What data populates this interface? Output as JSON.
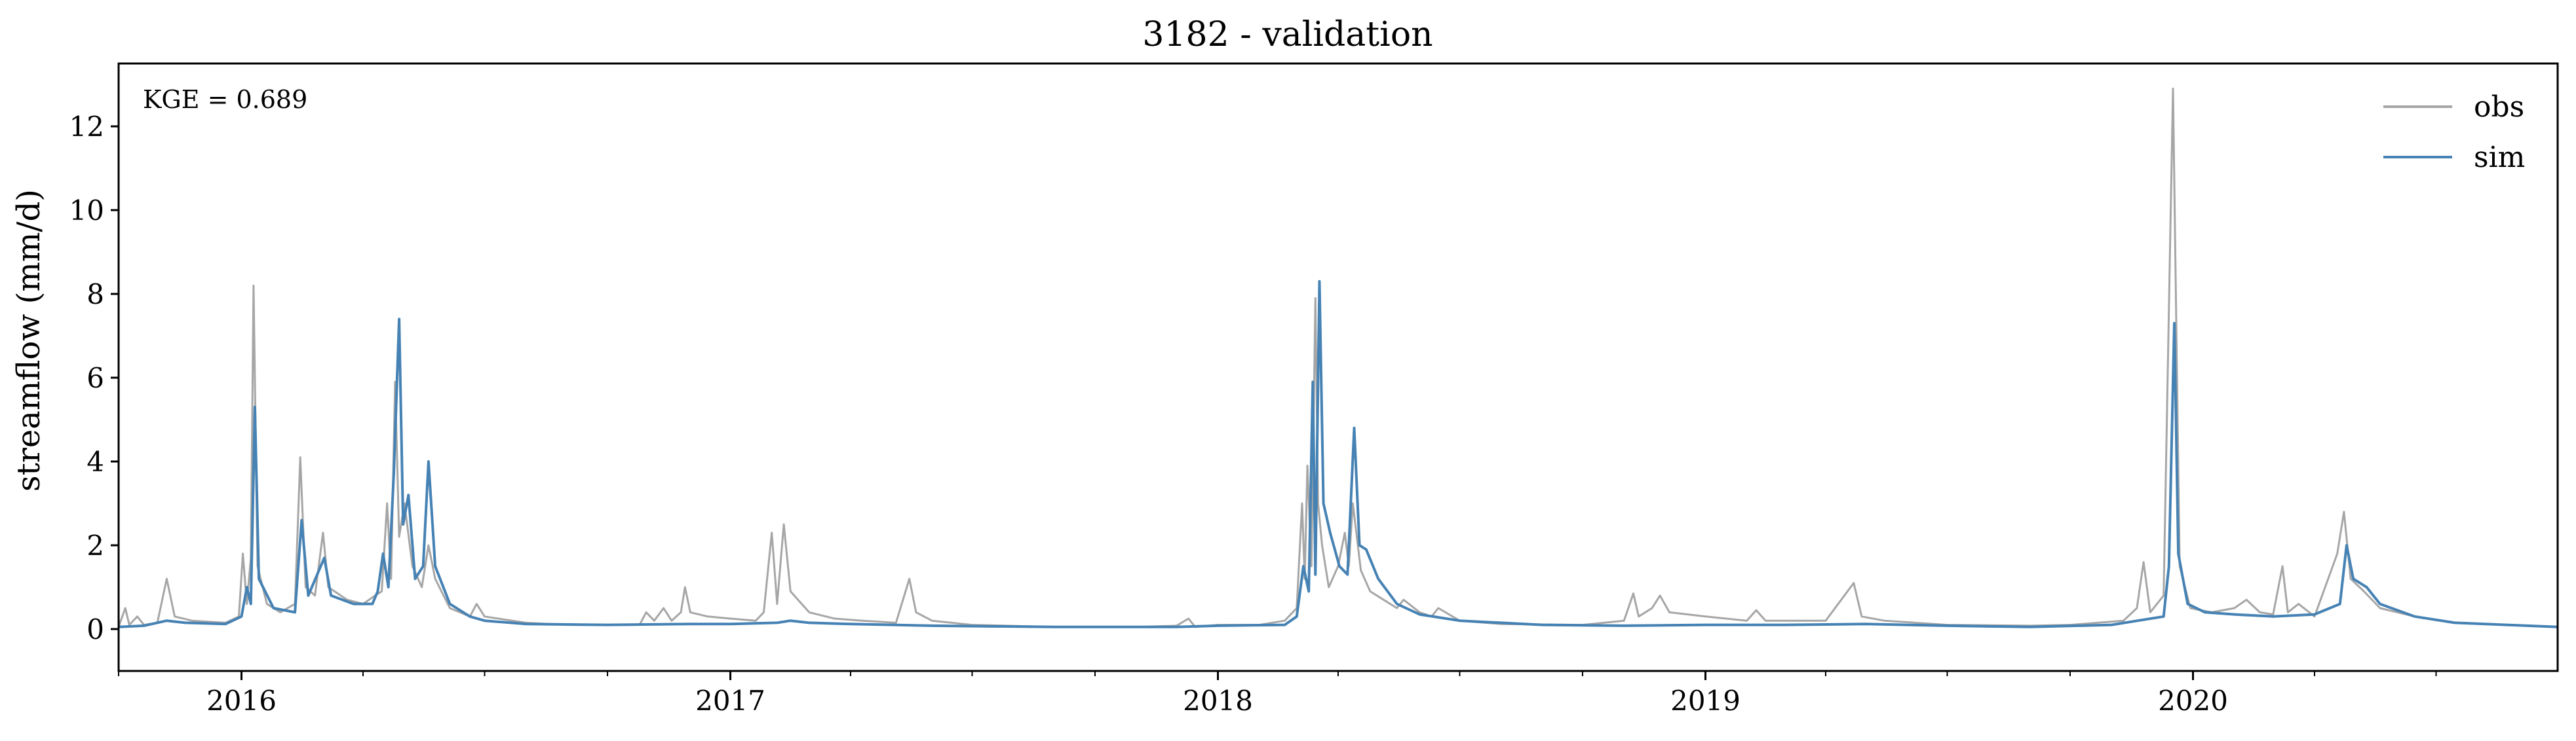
{
  "chart_data": {
    "type": "line",
    "title": "3182 - validation",
    "xlabel": "",
    "ylabel": "streamflow (mm/d)",
    "annotation": "KGE = 0.689",
    "legend_position": "top-right",
    "grid": false,
    "xlim": [
      "2015-10-01",
      "2020-09-30"
    ],
    "ylim": [
      -1,
      13.5
    ],
    "x_ticks": [
      "2016",
      "2017",
      "2018",
      "2019",
      "2020"
    ],
    "y_ticks": [
      "0",
      "2",
      "4",
      "6",
      "8",
      "10",
      "12"
    ],
    "x_minor_ticks": "quarterly",
    "series": [
      {
        "name": "obs",
        "color": "#a6a6a6",
        "points": [
          [
            "2015-10-01",
            0.05
          ],
          [
            "2015-10-06",
            0.5
          ],
          [
            "2015-10-09",
            0.1
          ],
          [
            "2015-10-15",
            0.3
          ],
          [
            "2015-10-20",
            0.1
          ],
          [
            "2015-10-30",
            0.15
          ],
          [
            "2015-11-06",
            1.2
          ],
          [
            "2015-11-12",
            0.3
          ],
          [
            "2015-11-25",
            0.2
          ],
          [
            "2015-12-20",
            0.15
          ],
          [
            "2015-12-30",
            0.3
          ],
          [
            "2016-01-02",
            1.8
          ],
          [
            "2016-01-05",
            0.6
          ],
          [
            "2016-01-08",
            1.7
          ],
          [
            "2016-01-10",
            8.2
          ],
          [
            "2016-01-13",
            1.5
          ],
          [
            "2016-01-20",
            0.6
          ],
          [
            "2016-01-30",
            0.4
          ],
          [
            "2016-02-10",
            0.6
          ],
          [
            "2016-02-14",
            4.1
          ],
          [
            "2016-02-18",
            1.0
          ],
          [
            "2016-02-25",
            0.8
          ],
          [
            "2016-03-02",
            2.3
          ],
          [
            "2016-03-06",
            1.0
          ],
          [
            "2016-03-20",
            0.7
          ],
          [
            "2016-04-01",
            0.6
          ],
          [
            "2016-04-10",
            0.8
          ],
          [
            "2016-04-15",
            0.9
          ],
          [
            "2016-04-19",
            3.0
          ],
          [
            "2016-04-22",
            1.2
          ],
          [
            "2016-04-25",
            5.9
          ],
          [
            "2016-04-28",
            2.2
          ],
          [
            "2016-05-02",
            3.0
          ],
          [
            "2016-05-08",
            1.5
          ],
          [
            "2016-05-15",
            1.0
          ],
          [
            "2016-05-20",
            2.0
          ],
          [
            "2016-05-25",
            1.2
          ],
          [
            "2016-06-05",
            0.5
          ],
          [
            "2016-06-20",
            0.3
          ],
          [
            "2016-06-25",
            0.6
          ],
          [
            "2016-07-01",
            0.3
          ],
          [
            "2016-08-01",
            0.15
          ],
          [
            "2016-09-01",
            0.1
          ],
          [
            "2016-10-01",
            0.1
          ],
          [
            "2016-10-25",
            0.1
          ],
          [
            "2016-10-30",
            0.4
          ],
          [
            "2016-11-05",
            0.2
          ],
          [
            "2016-11-12",
            0.5
          ],
          [
            "2016-11-18",
            0.2
          ],
          [
            "2016-11-25",
            0.4
          ],
          [
            "2016-11-28",
            1.0
          ],
          [
            "2016-12-02",
            0.4
          ],
          [
            "2016-12-15",
            0.3
          ],
          [
            "2017-01-01",
            0.25
          ],
          [
            "2017-01-20",
            0.2
          ],
          [
            "2017-01-26",
            0.4
          ],
          [
            "2017-02-01",
            2.3
          ],
          [
            "2017-02-05",
            0.6
          ],
          [
            "2017-02-10",
            2.5
          ],
          [
            "2017-02-15",
            0.9
          ],
          [
            "2017-03-01",
            0.4
          ],
          [
            "2017-03-20",
            0.25
          ],
          [
            "2017-04-10",
            0.2
          ],
          [
            "2017-05-05",
            0.15
          ],
          [
            "2017-05-15",
            1.2
          ],
          [
            "2017-05-20",
            0.4
          ],
          [
            "2017-06-01",
            0.2
          ],
          [
            "2017-07-01",
            0.1
          ],
          [
            "2017-09-01",
            0.05
          ],
          [
            "2017-11-01",
            0.05
          ],
          [
            "2017-12-01",
            0.08
          ],
          [
            "2017-12-10",
            0.25
          ],
          [
            "2017-12-15",
            0.05
          ],
          [
            "2018-01-01",
            0.1
          ],
          [
            "2018-01-20",
            0.1
          ],
          [
            "2018-02-01",
            0.1
          ],
          [
            "2018-02-20",
            0.2
          ],
          [
            "2018-03-01",
            0.5
          ],
          [
            "2018-03-05",
            3.0
          ],
          [
            "2018-03-07",
            1.2
          ],
          [
            "2018-03-09",
            3.9
          ],
          [
            "2018-03-12",
            1.5
          ],
          [
            "2018-03-15",
            7.9
          ],
          [
            "2018-03-17",
            3.0
          ],
          [
            "2018-03-20",
            2.0
          ],
          [
            "2018-03-25",
            1.0
          ],
          [
            "2018-04-01",
            1.5
          ],
          [
            "2018-04-06",
            2.3
          ],
          [
            "2018-04-09",
            1.5
          ],
          [
            "2018-04-12",
            3.0
          ],
          [
            "2018-04-18",
            1.4
          ],
          [
            "2018-04-25",
            0.9
          ],
          [
            "2018-05-05",
            0.7
          ],
          [
            "2018-05-15",
            0.5
          ],
          [
            "2018-05-20",
            0.7
          ],
          [
            "2018-06-01",
            0.4
          ],
          [
            "2018-06-10",
            0.3
          ],
          [
            "2018-06-15",
            0.5
          ],
          [
            "2018-07-01",
            0.2
          ],
          [
            "2018-08-01",
            0.12
          ],
          [
            "2018-10-01",
            0.1
          ],
          [
            "2018-11-01",
            0.2
          ],
          [
            "2018-11-08",
            0.85
          ],
          [
            "2018-11-12",
            0.3
          ],
          [
            "2018-11-22",
            0.5
          ],
          [
            "2018-11-28",
            0.8
          ],
          [
            "2018-12-05",
            0.4
          ],
          [
            "2019-01-01",
            0.3
          ],
          [
            "2019-02-01",
            0.2
          ],
          [
            "2019-02-08",
            0.45
          ],
          [
            "2019-02-15",
            0.2
          ],
          [
            "2019-04-01",
            0.2
          ],
          [
            "2019-04-22",
            1.1
          ],
          [
            "2019-04-28",
            0.3
          ],
          [
            "2019-05-15",
            0.2
          ],
          [
            "2019-07-01",
            0.1
          ],
          [
            "2019-09-01",
            0.08
          ],
          [
            "2019-10-01",
            0.1
          ],
          [
            "2019-11-10",
            0.2
          ],
          [
            "2019-11-20",
            0.5
          ],
          [
            "2019-11-25",
            1.6
          ],
          [
            "2019-11-30",
            0.4
          ],
          [
            "2019-12-10",
            0.8
          ],
          [
            "2019-12-17",
            12.9
          ],
          [
            "2019-12-22",
            1.5
          ],
          [
            "2019-12-30",
            0.5
          ],
          [
            "2020-01-15",
            0.4
          ],
          [
            "2020-02-01",
            0.5
          ],
          [
            "2020-02-10",
            0.7
          ],
          [
            "2020-02-20",
            0.4
          ],
          [
            "2020-03-01",
            0.35
          ],
          [
            "2020-03-08",
            1.5
          ],
          [
            "2020-03-12",
            0.4
          ],
          [
            "2020-03-20",
            0.6
          ],
          [
            "2020-04-01",
            0.3
          ],
          [
            "2020-04-18",
            1.8
          ],
          [
            "2020-04-23",
            2.8
          ],
          [
            "2020-04-28",
            1.2
          ],
          [
            "2020-05-08",
            0.9
          ],
          [
            "2020-05-20",
            0.5
          ],
          [
            "2020-06-15",
            0.3
          ],
          [
            "2020-07-15",
            0.15
          ],
          [
            "2020-09-30",
            0.05
          ]
        ]
      },
      {
        "name": "sim",
        "color": "#4682b4",
        "points": [
          [
            "2015-10-01",
            0.05
          ],
          [
            "2015-10-20",
            0.08
          ],
          [
            "2015-11-06",
            0.2
          ],
          [
            "2015-11-20",
            0.15
          ],
          [
            "2015-12-20",
            0.12
          ],
          [
            "2016-01-01",
            0.3
          ],
          [
            "2016-01-05",
            1.0
          ],
          [
            "2016-01-08",
            0.6
          ],
          [
            "2016-01-11",
            5.3
          ],
          [
            "2016-01-14",
            1.2
          ],
          [
            "2016-01-25",
            0.5
          ],
          [
            "2016-02-10",
            0.4
          ],
          [
            "2016-02-15",
            2.6
          ],
          [
            "2016-02-20",
            0.8
          ],
          [
            "2016-03-03",
            1.7
          ],
          [
            "2016-03-08",
            0.8
          ],
          [
            "2016-03-25",
            0.6
          ],
          [
            "2016-04-08",
            0.6
          ],
          [
            "2016-04-12",
            0.9
          ],
          [
            "2016-04-16",
            1.8
          ],
          [
            "2016-04-20",
            1.0
          ],
          [
            "2016-04-24",
            3.7
          ],
          [
            "2016-04-28",
            7.4
          ],
          [
            "2016-05-01",
            2.5
          ],
          [
            "2016-05-05",
            3.2
          ],
          [
            "2016-05-10",
            1.2
          ],
          [
            "2016-05-16",
            1.5
          ],
          [
            "2016-05-20",
            4.0
          ],
          [
            "2016-05-25",
            1.5
          ],
          [
            "2016-06-05",
            0.6
          ],
          [
            "2016-06-20",
            0.3
          ],
          [
            "2016-07-01",
            0.2
          ],
          [
            "2016-08-01",
            0.12
          ],
          [
            "2016-10-01",
            0.1
          ],
          [
            "2016-12-01",
            0.12
          ],
          [
            "2017-01-01",
            0.12
          ],
          [
            "2017-02-05",
            0.15
          ],
          [
            "2017-02-15",
            0.2
          ],
          [
            "2017-03-01",
            0.15
          ],
          [
            "2017-04-01",
            0.12
          ],
          [
            "2017-06-01",
            0.08
          ],
          [
            "2017-09-01",
            0.05
          ],
          [
            "2017-12-01",
            0.05
          ],
          [
            "2018-01-01",
            0.08
          ],
          [
            "2018-02-20",
            0.1
          ],
          [
            "2018-03-01",
            0.3
          ],
          [
            "2018-03-06",
            1.5
          ],
          [
            "2018-03-10",
            0.9
          ],
          [
            "2018-03-13",
            5.9
          ],
          [
            "2018-03-15",
            1.3
          ],
          [
            "2018-03-18",
            8.3
          ],
          [
            "2018-03-21",
            3.0
          ],
          [
            "2018-03-26",
            2.3
          ],
          [
            "2018-04-02",
            1.5
          ],
          [
            "2018-04-08",
            1.3
          ],
          [
            "2018-04-13",
            4.8
          ],
          [
            "2018-04-17",
            2.0
          ],
          [
            "2018-04-22",
            1.9
          ],
          [
            "2018-05-01",
            1.2
          ],
          [
            "2018-05-15",
            0.6
          ],
          [
            "2018-06-01",
            0.35
          ],
          [
            "2018-07-01",
            0.2
          ],
          [
            "2018-09-01",
            0.1
          ],
          [
            "2018-11-01",
            0.08
          ],
          [
            "2019-01-01",
            0.1
          ],
          [
            "2019-03-01",
            0.1
          ],
          [
            "2019-05-01",
            0.12
          ],
          [
            "2019-07-01",
            0.08
          ],
          [
            "2019-09-01",
            0.05
          ],
          [
            "2019-11-01",
            0.1
          ],
          [
            "2019-12-10",
            0.3
          ],
          [
            "2019-12-14",
            1.5
          ],
          [
            "2019-12-18",
            7.3
          ],
          [
            "2019-12-21",
            1.8
          ],
          [
            "2019-12-28",
            0.6
          ],
          [
            "2020-01-10",
            0.4
          ],
          [
            "2020-02-01",
            0.35
          ],
          [
            "2020-03-01",
            0.3
          ],
          [
            "2020-04-01",
            0.35
          ],
          [
            "2020-04-20",
            0.6
          ],
          [
            "2020-04-25",
            2.0
          ],
          [
            "2020-04-30",
            1.2
          ],
          [
            "2020-05-10",
            1.0
          ],
          [
            "2020-05-20",
            0.6
          ],
          [
            "2020-06-15",
            0.3
          ],
          [
            "2020-07-15",
            0.15
          ],
          [
            "2020-09-30",
            0.05
          ]
        ]
      }
    ]
  }
}
